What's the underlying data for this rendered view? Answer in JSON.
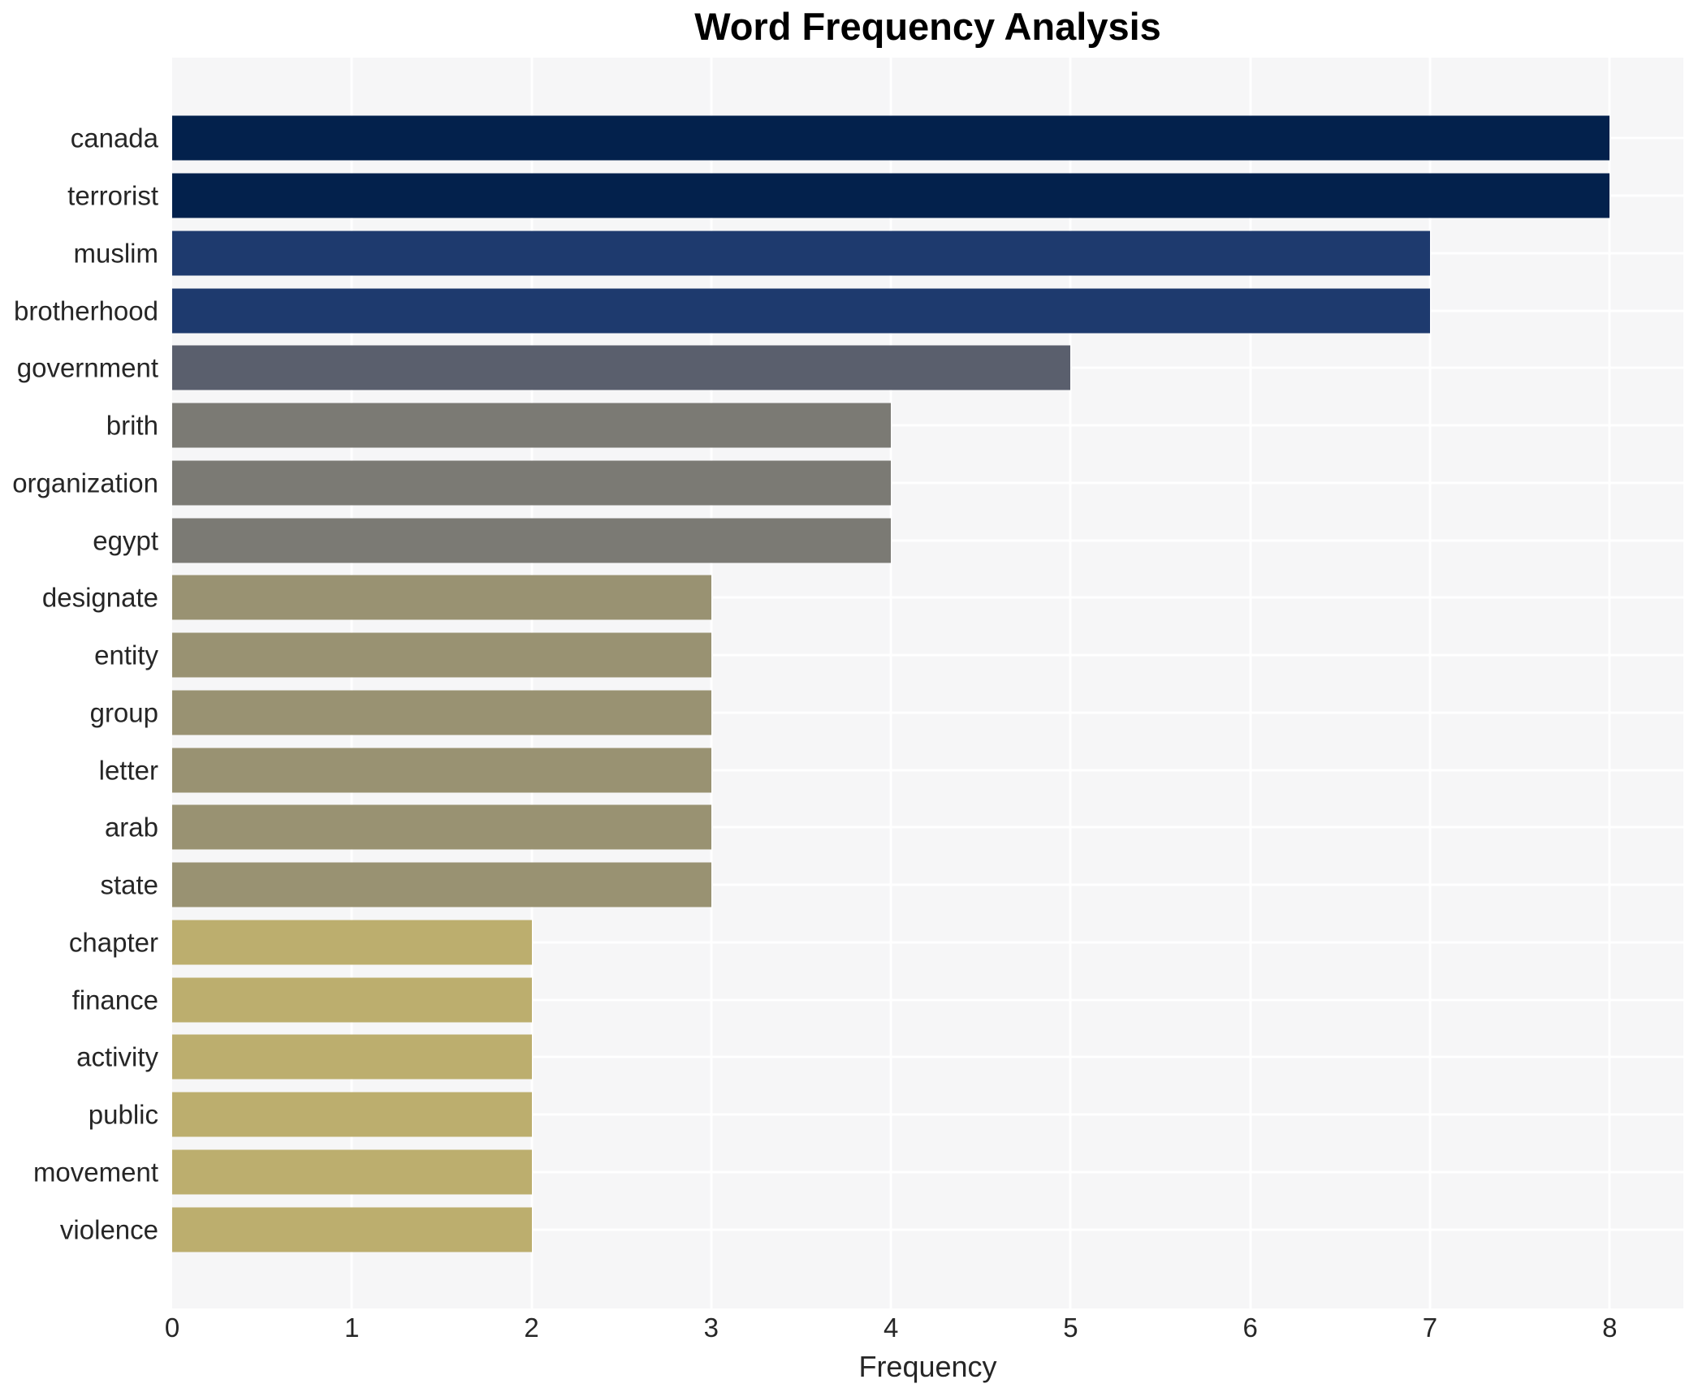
{
  "chart_data": {
    "type": "bar",
    "orientation": "horizontal",
    "title": "Word Frequency Analysis",
    "xlabel": "Frequency",
    "ylabel": "",
    "xlim": [
      0,
      8.41
    ],
    "xticks": [
      0,
      1,
      2,
      3,
      4,
      5,
      6,
      7,
      8
    ],
    "grid": true,
    "legend": "none",
    "categories": [
      "canada",
      "terrorist",
      "muslim",
      "brotherhood",
      "government",
      "brith",
      "organization",
      "egypt",
      "designate",
      "entity",
      "group",
      "letter",
      "arab",
      "state",
      "chapter",
      "finance",
      "activity",
      "public",
      "movement",
      "violence"
    ],
    "values": [
      8,
      8,
      7,
      7,
      5,
      4,
      4,
      4,
      3,
      3,
      3,
      3,
      3,
      3,
      2,
      2,
      2,
      2,
      2,
      2
    ],
    "bar_colors": [
      "#03214c",
      "#03214c",
      "#1e3a6e",
      "#1e3a6e",
      "#5a5f6d",
      "#7b7a74",
      "#7b7a74",
      "#7b7a74",
      "#999272",
      "#999272",
      "#999272",
      "#999272",
      "#999272",
      "#999272",
      "#bcae6e",
      "#bcae6e",
      "#bcae6e",
      "#bcae6e",
      "#bcae6e",
      "#bcae6e"
    ]
  },
  "style": {
    "plot_background": "#f6f6f7",
    "grid_color": "#ffffff",
    "text_color": "#262626",
    "title_color": "#000000"
  }
}
